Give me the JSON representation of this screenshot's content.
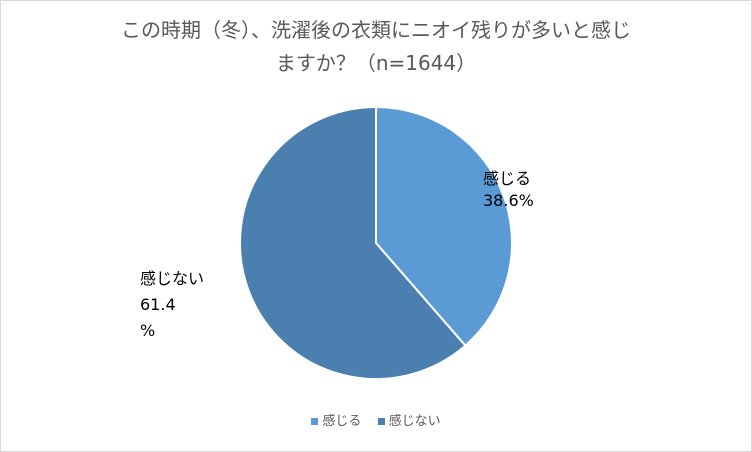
{
  "chart_data": {
    "type": "pie",
    "title_lines": [
      "この時期（冬）、洗濯後の衣類にニオイ残りが多いと感じ",
      "ますか？（n=1644）"
    ],
    "slices": [
      {
        "label": "感じる",
        "value": 38.6,
        "label_line1": "感じる",
        "label_line2": "38.6%",
        "color": "#5b9bd5"
      },
      {
        "label": "感じない",
        "value": 61.4,
        "label_line1": "感じない",
        "label_line2": "61.4",
        "label_line3": "%",
        "color": "#4a7fb0"
      }
    ],
    "legend": [
      "感じる",
      "感じない"
    ],
    "legend_placement": "bottom"
  }
}
